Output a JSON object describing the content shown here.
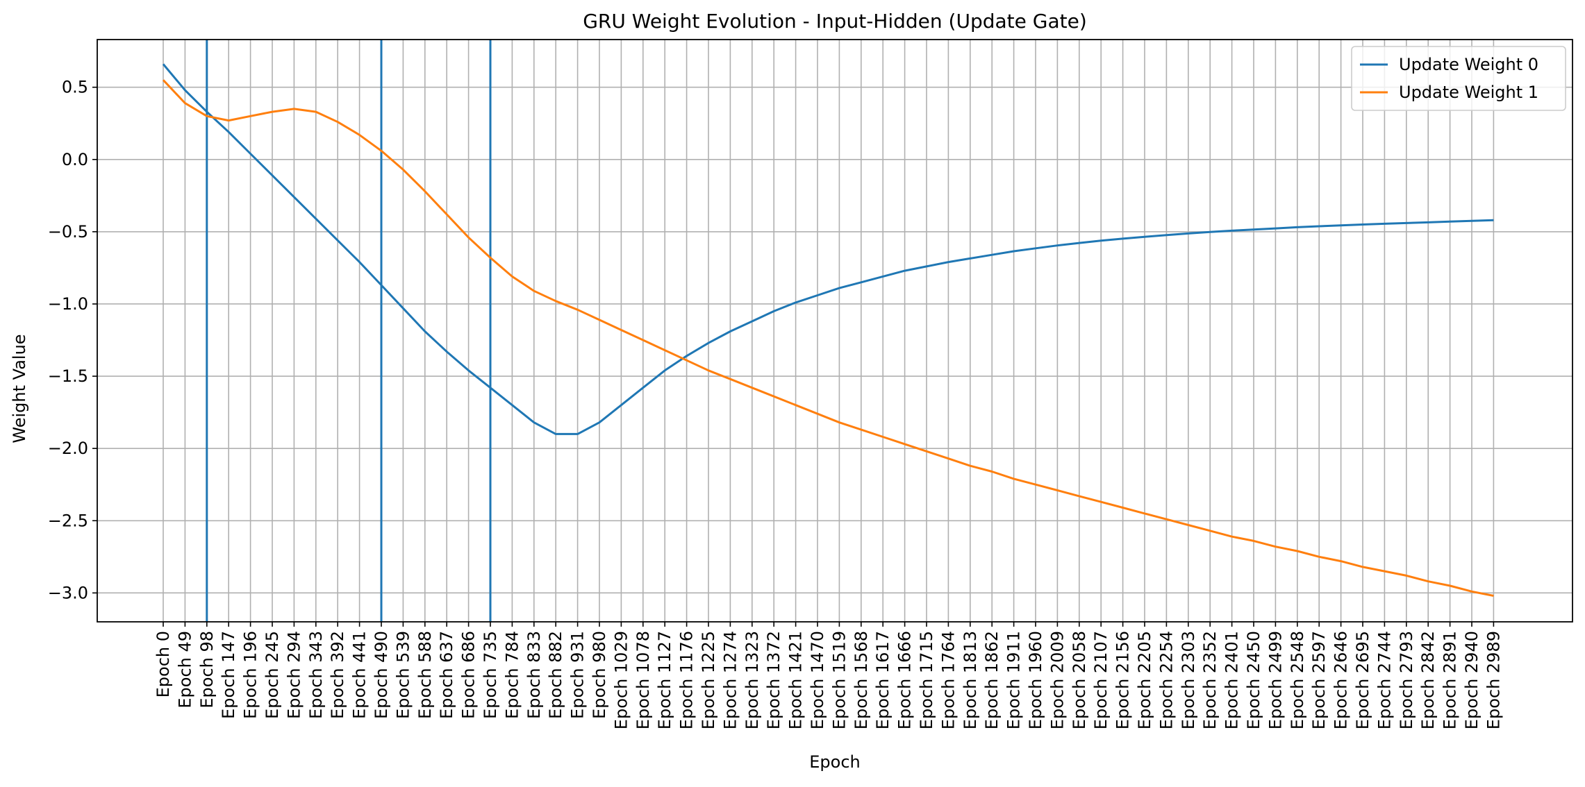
{
  "chart_data": {
    "type": "line",
    "title": "GRU Weight Evolution - Input-Hidden (Update Gate)",
    "xlabel": "Epoch",
    "ylabel": "Weight Value",
    "x_tick_labels": [
      "Epoch 0",
      "Epoch 49",
      "Epoch 98",
      "Epoch 147",
      "Epoch 196",
      "Epoch 245",
      "Epoch 294",
      "Epoch 343",
      "Epoch 392",
      "Epoch 441",
      "Epoch 490",
      "Epoch 539",
      "Epoch 588",
      "Epoch 637",
      "Epoch 686",
      "Epoch 735",
      "Epoch 784",
      "Epoch 833",
      "Epoch 882",
      "Epoch 931",
      "Epoch 980",
      "Epoch 1029",
      "Epoch 1078",
      "Epoch 1127",
      "Epoch 1176",
      "Epoch 1225",
      "Epoch 1274",
      "Epoch 1323",
      "Epoch 1372",
      "Epoch 1421",
      "Epoch 1470",
      "Epoch 1519",
      "Epoch 1568",
      "Epoch 1617",
      "Epoch 1666",
      "Epoch 1715",
      "Epoch 1764",
      "Epoch 1813",
      "Epoch 1862",
      "Epoch 1911",
      "Epoch 1960",
      "Epoch 2009",
      "Epoch 2058",
      "Epoch 2107",
      "Epoch 2156",
      "Epoch 2205",
      "Epoch 2254",
      "Epoch 2303",
      "Epoch 2352",
      "Epoch 2401",
      "Epoch 2450",
      "Epoch 2499",
      "Epoch 2548",
      "Epoch 2597",
      "Epoch 2646",
      "Epoch 2695",
      "Epoch 2744",
      "Epoch 2793",
      "Epoch 2842",
      "Epoch 2891",
      "Epoch 2940",
      "Epoch 2989"
    ],
    "y_ticks": [
      0.5,
      0.0,
      -0.5,
      -1.0,
      -1.5,
      -2.0,
      -2.5,
      -3.0
    ],
    "y_tick_labels": [
      "0.5",
      "0.0",
      "−0.5",
      "−1.0",
      "−1.5",
      "−2.0",
      "−2.5",
      "−3.0"
    ],
    "ylim": [
      -3.2,
      0.83
    ],
    "grid": true,
    "legend_position": "top-right",
    "vertical_lines": {
      "color": "#1f77b4",
      "at": [
        "Epoch 98",
        "Epoch 490",
        "Epoch 735"
      ]
    },
    "series": [
      {
        "name": "Update Weight 0",
        "color": "#1f77b4",
        "values": [
          0.66,
          0.48,
          0.33,
          0.19,
          0.04,
          -0.11,
          -0.26,
          -0.41,
          -0.56,
          -0.71,
          -0.87,
          -1.03,
          -1.19,
          -1.33,
          -1.46,
          -1.58,
          -1.7,
          -1.82,
          -1.9,
          -1.9,
          -1.82,
          -1.7,
          -1.58,
          -1.46,
          -1.36,
          -1.27,
          -1.19,
          -1.12,
          -1.05,
          -0.99,
          -0.94,
          -0.89,
          -0.85,
          -0.81,
          -0.77,
          -0.74,
          -0.71,
          -0.685,
          -0.66,
          -0.635,
          -0.615,
          -0.595,
          -0.578,
          -0.562,
          -0.548,
          -0.535,
          -0.523,
          -0.512,
          -0.502,
          -0.493,
          -0.485,
          -0.477,
          -0.469,
          -0.462,
          -0.456,
          -0.45,
          -0.445,
          -0.44,
          -0.435,
          -0.43,
          -0.425,
          -0.42
        ]
      },
      {
        "name": "Update Weight 1",
        "color": "#ff7f0e",
        "values": [
          0.55,
          0.39,
          0.3,
          0.27,
          0.3,
          0.33,
          0.35,
          0.33,
          0.26,
          0.17,
          0.06,
          -0.07,
          -0.22,
          -0.38,
          -0.54,
          -0.68,
          -0.81,
          -0.91,
          -0.98,
          -1.04,
          -1.11,
          -1.18,
          -1.25,
          -1.32,
          -1.39,
          -1.46,
          -1.52,
          -1.58,
          -1.64,
          -1.7,
          -1.76,
          -1.82,
          -1.87,
          -1.92,
          -1.97,
          -2.02,
          -2.07,
          -2.12,
          -2.16,
          -2.21,
          -2.25,
          -2.29,
          -2.33,
          -2.37,
          -2.41,
          -2.45,
          -2.49,
          -2.53,
          -2.57,
          -2.61,
          -2.64,
          -2.68,
          -2.71,
          -2.75,
          -2.78,
          -2.82,
          -2.85,
          -2.88,
          -2.92,
          -2.95,
          -2.99,
          -3.02
        ]
      }
    ]
  }
}
